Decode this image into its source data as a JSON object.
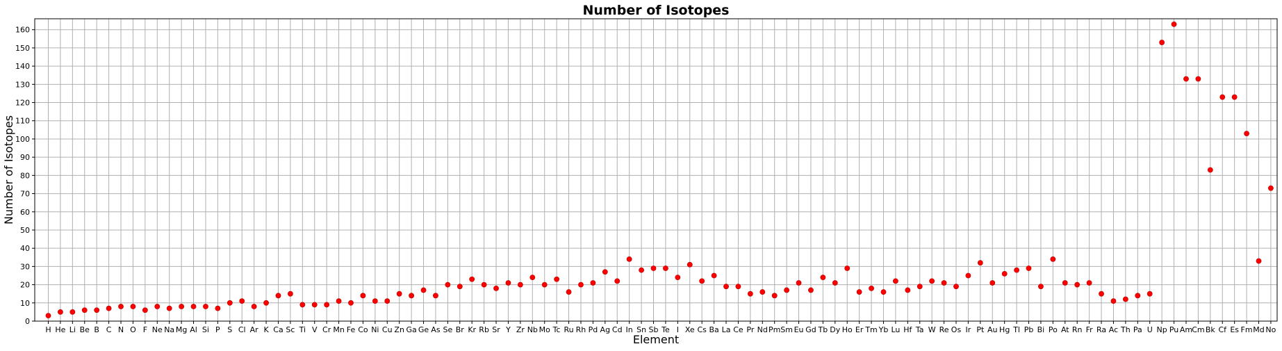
{
  "chart_data": {
    "type": "scatter",
    "title": "Number of Isotopes",
    "xlabel": "Element",
    "ylabel": "Number of Isotopes",
    "ylim": [
      0,
      166
    ],
    "yticks": [
      0,
      10,
      20,
      30,
      40,
      50,
      60,
      70,
      80,
      90,
      100,
      110,
      120,
      130,
      140,
      150,
      160
    ],
    "grid": true,
    "marker_color": "#ff0000",
    "series": [
      {
        "x": [
          "H",
          "He",
          "Li",
          "Be",
          "B",
          "C",
          "N",
          "O",
          "F",
          "Ne",
          "Na",
          "Mg",
          "Al",
          "Si",
          "P",
          "S",
          "Cl",
          "Ar",
          "K",
          "Ca",
          "Sc",
          "Ti",
          "V",
          "Cr",
          "Mn",
          "Fe",
          "Co",
          "Ni",
          "Cu",
          "Zn",
          "Ga",
          "Ge",
          "As",
          "Se",
          "Br",
          "Kr",
          "Rb",
          "Sr",
          "Y",
          "Zr",
          "Nb",
          "Mo",
          "Tc",
          "Ru",
          "Rh",
          "Pd",
          "Ag",
          "Cd",
          "In",
          "Sn",
          "Sb",
          "Te",
          "I",
          "Xe",
          "Cs",
          "Ba",
          "La",
          "Ce",
          "Pr",
          "Nd",
          "Pm",
          "Sm",
          "Eu",
          "Gd",
          "Tb",
          "Dy",
          "Ho",
          "Er",
          "Tm",
          "Yb",
          "Lu",
          "Hf",
          "Ta",
          "W",
          "Re",
          "Os",
          "Ir",
          "Pt",
          "Au",
          "Hg",
          "Tl",
          "Pb",
          "Bi",
          "Po",
          "At",
          "Rn",
          "Fr",
          "Ra",
          "Ac",
          "Th",
          "Pa",
          "U",
          "Np",
          "Pu",
          "Am",
          "Cm",
          "Bk",
          "Cf",
          "Es",
          "Fm",
          "Md",
          "No"
        ],
        "y": [
          3,
          5,
          5,
          6,
          6,
          7,
          8,
          8,
          6,
          8,
          7,
          8,
          8,
          8,
          7,
          10,
          11,
          8,
          10,
          14,
          15,
          9,
          9,
          9,
          11,
          10,
          14,
          11,
          11,
          15,
          14,
          17,
          14,
          20,
          19,
          23,
          20,
          18,
          21,
          20,
          24,
          20,
          23,
          16,
          20,
          21,
          27,
          22,
          34,
          28,
          29,
          29,
          24,
          31,
          22,
          25,
          19,
          19,
          15,
          16,
          14,
          17,
          21,
          17,
          24,
          21,
          29,
          16,
          18,
          16,
          22,
          17,
          19,
          22,
          21,
          19,
          25,
          32,
          21,
          26,
          28,
          29,
          19,
          34,
          21,
          20,
          21,
          15,
          11,
          12,
          14,
          15,
          153,
          163,
          133,
          133,
          83,
          123,
          123,
          103,
          33,
          73
        ]
      }
    ]
  }
}
